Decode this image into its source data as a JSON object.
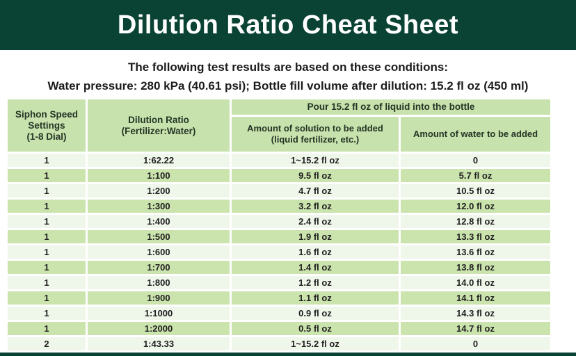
{
  "banner": {
    "title": "Dilution Ratio Cheat Sheet"
  },
  "conditions": {
    "line1": "The following test results are based on these conditions:",
    "line2": "Water pressure: 280 kPa (40.61 psi); Bottle fill volume after dilution: 15.2 fl oz (450 ml)"
  },
  "table_headers": {
    "siphon": "Siphon Speed\nSettings\n(1-8 Dial)",
    "ratio": "Dilution Ratio\n(Fertilizer:Water)",
    "pour_group": "Pour 15.2 fl oz of liquid into the bottle",
    "solution": "Amount of solution to be added\n(liquid fertilizer, etc.)",
    "water": "Amount of water to be added"
  },
  "colors": {
    "banner_green": "#0a4334",
    "header_cell_green": "#c8e2ad",
    "row_green": "#cbe4ae",
    "row_pale": "#eff6ea"
  },
  "chart_data": {
    "type": "table",
    "title": "Dilution Ratio Cheat Sheet",
    "column_group": "Pour 15.2 fl oz of liquid into the bottle",
    "columns": [
      "Siphon Speed Settings (1-8 Dial)",
      "Dilution Ratio (Fertilizer:Water)",
      "Amount of solution to be added (liquid fertilizer, etc.)",
      "Amount of water to be added"
    ],
    "rows": [
      [
        "1",
        "1:62.22",
        "1~15.2 fl oz",
        "0"
      ],
      [
        "1",
        "1:100",
        "9.5 fl oz",
        "5.7 fl oz"
      ],
      [
        "1",
        "1:200",
        "4.7 fl oz",
        "10.5 fl oz"
      ],
      [
        "1",
        "1:300",
        "3.2 fl oz",
        "12.0 fl oz"
      ],
      [
        "1",
        "1:400",
        "2.4 fl oz",
        "12.8 fl oz"
      ],
      [
        "1",
        "1:500",
        "1.9 fl oz",
        "13.3 fl oz"
      ],
      [
        "1",
        "1:600",
        "1.6 fl oz",
        "13.6 fl oz"
      ],
      [
        "1",
        "1:700",
        "1.4 fl oz",
        "13.8 fl oz"
      ],
      [
        "1",
        "1:800",
        "1.2 fl oz",
        "14.0 fl oz"
      ],
      [
        "1",
        "1:900",
        "1.1 fl oz",
        "14.1 fl oz"
      ],
      [
        "1",
        "1:1000",
        "0.9 fl oz",
        "14.3 fl oz"
      ],
      [
        "1",
        "1:2000",
        "0.5 fl oz",
        "14.7 fl oz"
      ],
      [
        "2",
        "1:43.33",
        "1~15.2 fl oz",
        "0"
      ]
    ]
  }
}
